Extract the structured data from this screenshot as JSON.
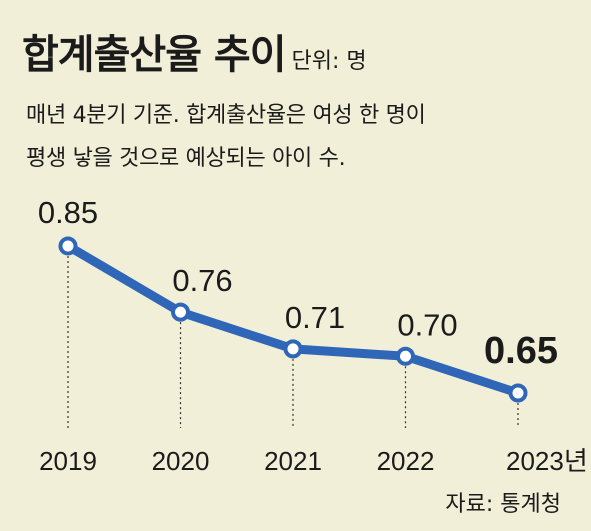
{
  "title": "합계출산율 추이",
  "unit": "단위: 명",
  "description": [
    "매년 4분기 기준. 합계출산율은 여성 한 명이",
    "평생 낳을 것으로 예상되는 아이 수."
  ],
  "source": "자료: 통계청",
  "colors": {
    "line": "#2f66b8",
    "background": "#f1efd8"
  },
  "chart_data": {
    "type": "line",
    "categories": [
      "2019",
      "2020",
      "2021",
      "2022",
      "2023년"
    ],
    "values": [
      0.85,
      0.76,
      0.71,
      0.7,
      0.65
    ],
    "value_labels": [
      "0.85",
      "0.76",
      "0.71",
      "0.70",
      "0.65"
    ],
    "title": "합계출산율 추이",
    "xlabel": "",
    "ylabel": "",
    "grid": false,
    "legend": "none"
  }
}
